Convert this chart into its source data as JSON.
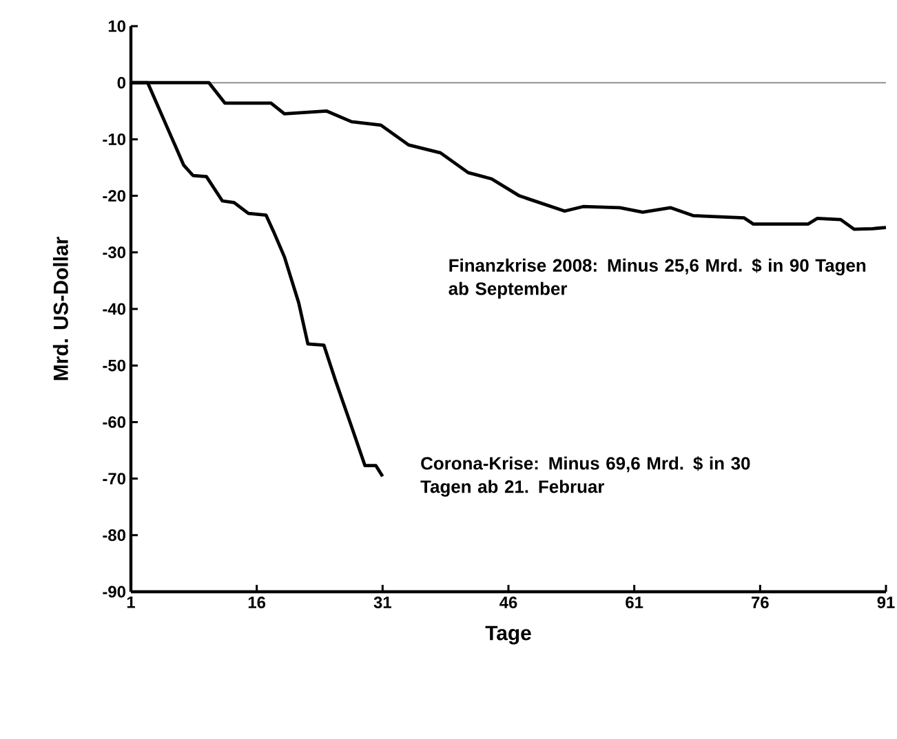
{
  "chart_data": {
    "type": "line",
    "xlabel": "Tage",
    "ylabel": "Mrd. US-Dollar",
    "xlim": [
      1,
      91
    ],
    "xticks": [
      1,
      16,
      31,
      46,
      61,
      76,
      91
    ],
    "ylim": [
      -90,
      10
    ],
    "yticks": [
      -90,
      -80,
      -70,
      -60,
      -50,
      -40,
      -30,
      -20,
      -10,
      0,
      10
    ],
    "grid": false,
    "marker": "none",
    "line_style": "solid",
    "ref_lines": [
      {
        "axis": "y",
        "value": 0,
        "color": "#909090"
      }
    ],
    "series": [
      {
        "color": "#000000",
        "x": [
          1,
          10.3,
          12.2,
          17.7,
          19.3,
          24.3,
          27.3,
          30.8,
          34.1,
          37.9,
          41.2,
          44,
          47.3,
          52.7,
          54.9,
          59.3,
          62,
          65.3,
          68,
          74.1,
          75.2,
          81.7,
          82.8,
          85.6,
          87.2,
          89.4,
          91
        ],
        "values": [
          0,
          0,
          -3.6,
          -3.6,
          -5.5,
          -5,
          -6.9,
          -7.5,
          -11,
          -12.4,
          -15.9,
          -17,
          -20,
          -22.7,
          -21.9,
          -22.1,
          -22.9,
          -22.1,
          -23.5,
          -23.9,
          -25,
          -25,
          -24,
          -24.2,
          -25.9,
          -25.8,
          -25.6
        ]
      },
      {
        "color": "#000000",
        "x": [
          1,
          3,
          7.3,
          8.4,
          10,
          11.9,
          13.3,
          15,
          17.1,
          18,
          19.3,
          21,
          22.1,
          24,
          25.4,
          27.3,
          28.9,
          30.2,
          31
        ],
        "values": [
          0,
          0,
          -14.6,
          -16.4,
          -16.6,
          -20.9,
          -21.2,
          -23.1,
          -23.4,
          -26.3,
          -30.8,
          -38.9,
          -46.2,
          -46.4,
          -52.7,
          -60.8,
          -67.7,
          -67.7,
          -69.6
        ]
      }
    ],
    "annotations": [
      "Finanzkrise 2008: Minus 25,6 Mrd. $ in 90 Tagen ab September",
      "Corona-Krise: Minus 69,6 Mrd. $ in 30 Tagen ab 21. Februar"
    ]
  }
}
